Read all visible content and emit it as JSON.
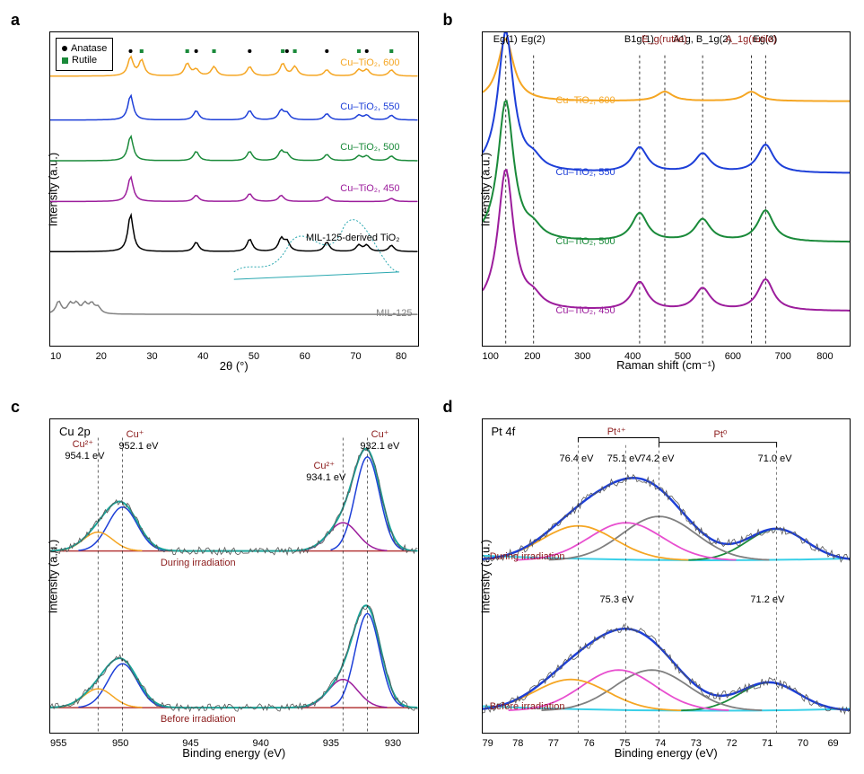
{
  "panel_a": {
    "label": "a",
    "y_label": "Intensity (a.u.)",
    "x_label": "2θ (°)",
    "x_ticks": [
      "10",
      "20",
      "30",
      "40",
      "50",
      "60",
      "70",
      "80"
    ],
    "x_range": [
      10,
      80
    ],
    "legend": {
      "anatase": {
        "text": "Anatase",
        "marker": "circle",
        "color": "#000000"
      },
      "rutile": {
        "text": "Rutile",
        "marker": "square",
        "color": "#1a8a3a"
      }
    },
    "traces": [
      {
        "name": "Cu-TiO2, 600",
        "label": "Cu–TiO₂, 600",
        "color": "#f5a623",
        "y_offset": 0.86,
        "xrd_peaks": [
          {
            "x": 25.3,
            "h": 0.06
          },
          {
            "x": 27.4,
            "h": 0.05
          },
          {
            "x": 36.1,
            "h": 0.04
          },
          {
            "x": 37.8,
            "h": 0.02
          },
          {
            "x": 41.2,
            "h": 0.03
          },
          {
            "x": 48.0,
            "h": 0.03
          },
          {
            "x": 54.3,
            "h": 0.04
          },
          {
            "x": 56.6,
            "h": 0.03
          },
          {
            "x": 62.7,
            "h": 0.02
          },
          {
            "x": 68.8,
            "h": 0.02
          },
          {
            "x": 70.3,
            "h": 0.02
          },
          {
            "x": 75.0,
            "h": 0.02
          }
        ],
        "anatase_marks": [
          25.3,
          37.8,
          48.0,
          55.1,
          62.7,
          70.3
        ],
        "rutile_marks": [
          27.4,
          36.1,
          41.2,
          54.3,
          56.6,
          68.8,
          75.0
        ]
      },
      {
        "name": "Cu-TiO2, 550",
        "label": "Cu–TiO₂, 550",
        "color": "#1d3fd8",
        "y_offset": 0.72,
        "xrd_peaks": [
          {
            "x": 25.3,
            "h": 0.08
          },
          {
            "x": 37.8,
            "h": 0.03
          },
          {
            "x": 48.0,
            "h": 0.03
          },
          {
            "x": 54.0,
            "h": 0.03
          },
          {
            "x": 55.1,
            "h": 0.02
          },
          {
            "x": 62.7,
            "h": 0.02
          },
          {
            "x": 68.8,
            "h": 0.015
          },
          {
            "x": 70.3,
            "h": 0.015
          },
          {
            "x": 75.0,
            "h": 0.015
          }
        ]
      },
      {
        "name": "Cu-TiO2, 500",
        "label": "Cu–TiO₂, 500",
        "color": "#1a8a3a",
        "y_offset": 0.59,
        "xrd_peaks": [
          {
            "x": 25.3,
            "h": 0.08
          },
          {
            "x": 37.8,
            "h": 0.03
          },
          {
            "x": 48.0,
            "h": 0.03
          },
          {
            "x": 54.0,
            "h": 0.03
          },
          {
            "x": 55.1,
            "h": 0.02
          },
          {
            "x": 62.7,
            "h": 0.02
          },
          {
            "x": 68.8,
            "h": 0.015
          },
          {
            "x": 70.3,
            "h": 0.015
          },
          {
            "x": 75.0,
            "h": 0.015
          }
        ]
      },
      {
        "name": "Cu-TiO2, 450",
        "label": "Cu–TiO₂, 450",
        "color": "#9c1d9c",
        "y_offset": 0.46,
        "xrd_peaks": [
          {
            "x": 25.3,
            "h": 0.08
          },
          {
            "x": 37.8,
            "h": 0.02
          },
          {
            "x": 48.0,
            "h": 0.025
          },
          {
            "x": 54.0,
            "h": 0.02
          },
          {
            "x": 62.7,
            "h": 0.015
          },
          {
            "x": 75.0,
            "h": 0.01
          }
        ]
      },
      {
        "name": "MIL-125-derived TiO2",
        "label": "MIL-125-derived TiO₂",
        "color": "#000000",
        "y_offset": 0.3,
        "xrd_peaks": [
          {
            "x": 25.3,
            "h": 0.12
          },
          {
            "x": 37.8,
            "h": 0.03
          },
          {
            "x": 48.0,
            "h": 0.04
          },
          {
            "x": 54.0,
            "h": 0.04
          },
          {
            "x": 55.1,
            "h": 0.03
          },
          {
            "x": 62.7,
            "h": 0.03
          },
          {
            "x": 68.8,
            "h": 0.02
          },
          {
            "x": 70.3,
            "h": 0.02
          },
          {
            "x": 75.0,
            "h": 0.02
          }
        ]
      },
      {
        "name": "MIL-125",
        "label": "MIL-125",
        "color": "#808080",
        "y_offset": 0.1,
        "xrd_peaks": [
          {
            "x": 11.6,
            "h": 0.04
          },
          {
            "x": 13.8,
            "h": 0.03
          },
          {
            "x": 15.0,
            "h": 0.03
          },
          {
            "x": 16.6,
            "h": 0.03
          },
          {
            "x": 17.9,
            "h": 0.03
          },
          {
            "x": 19.1,
            "h": 0.02
          }
        ]
      }
    ],
    "inset_curve_color": "#2aa8b0"
  },
  "panel_b": {
    "label": "b",
    "y_label": "Intensity (a.u.)",
    "x_label": "Raman shift (cm⁻¹)",
    "x_ticks": [
      "100",
      "200",
      "300",
      "400",
      "500",
      "600",
      "700",
      "800"
    ],
    "x_range": [
      100,
      800
    ],
    "modes_black": [
      {
        "label": "E_g(1)",
        "x": 144
      },
      {
        "label": "E_g(2)",
        "x": 197
      },
      {
        "label": "B_1g(1)",
        "x": 399
      },
      {
        "label": "A_1g, B_1g(2)",
        "x": 519
      },
      {
        "label": "E_g(3)",
        "x": 639
      }
    ],
    "modes_dark": [
      {
        "label": "E_g(rutile)",
        "x": 447,
        "color": "#8b1a1a"
      },
      {
        "label": "A_1g(rutile)",
        "x": 612,
        "color": "#8b1a1a"
      }
    ],
    "traces": [
      {
        "name": "Cu-TiO2, 600",
        "label": "Cu–TiO₂, 600",
        "color": "#f5a623",
        "y_offset": 0.78,
        "raman_peaks": [
          {
            "x": 144,
            "h": 0.2
          },
          {
            "x": 447,
            "h": 0.03
          },
          {
            "x": 612,
            "h": 0.03
          }
        ]
      },
      {
        "name": "Cu-TiO2, 550",
        "label": "Cu–TiO₂, 550",
        "color": "#1d3fd8",
        "y_offset": 0.55,
        "raman_peaks": [
          {
            "x": 144,
            "h": 0.45
          },
          {
            "x": 197,
            "h": 0.03
          },
          {
            "x": 399,
            "h": 0.08
          },
          {
            "x": 519,
            "h": 0.06
          },
          {
            "x": 639,
            "h": 0.09
          }
        ]
      },
      {
        "name": "Cu-TiO2, 500",
        "label": "Cu–TiO₂, 500",
        "color": "#1a8a3a",
        "y_offset": 0.33,
        "raman_peaks": [
          {
            "x": 144,
            "h": 0.45
          },
          {
            "x": 197,
            "h": 0.03
          },
          {
            "x": 399,
            "h": 0.09
          },
          {
            "x": 519,
            "h": 0.07
          },
          {
            "x": 639,
            "h": 0.1
          }
        ]
      },
      {
        "name": "Cu-TiO2, 450",
        "label": "Cu–TiO₂, 450",
        "color": "#9c1d9c",
        "y_offset": 0.11,
        "raman_peaks": [
          {
            "x": 144,
            "h": 0.45
          },
          {
            "x": 197,
            "h": 0.03
          },
          {
            "x": 399,
            "h": 0.09
          },
          {
            "x": 519,
            "h": 0.07
          },
          {
            "x": 639,
            "h": 0.1
          }
        ]
      }
    ]
  },
  "panel_c": {
    "label": "c",
    "title": "Cu 2p",
    "y_label": "Intensity (a.u.)",
    "x_label": "Binding energy (eV)",
    "x_ticks": [
      "955",
      "950",
      "945",
      "940",
      "935",
      "930"
    ],
    "x_range": [
      958,
      928
    ],
    "colors": {
      "envelope": "#1aa59a",
      "cu_plus": "#1d3fd8",
      "cu_2plus": "#f5a623",
      "baseline": "#b53a3a",
      "raw": "#555555",
      "extra_peak": "#9c1d9c"
    },
    "labels": {
      "cu_plus_hi": {
        "text": "Cu⁺",
        "val": "952.1 eV",
        "x": 952.1,
        "color": "#8b1a1a"
      },
      "cu_2plus_hi": {
        "text": "Cu²⁺",
        "val": "954.1 eV",
        "x": 954.1,
        "color": "#8b1a1a"
      },
      "cu_plus_lo": {
        "text": "Cu⁺",
        "val": "932.1 eV",
        "x": 932.1,
        "color": "#8b1a1a"
      },
      "cu_2plus_lo": {
        "text": "Cu²⁺",
        "val": "934.1 eV",
        "x": 934.1,
        "color": "#8b1a1a"
      }
    },
    "state_labels": {
      "during": "During irradiation",
      "before": "Before irradiation",
      "color": "#8b1a1a"
    }
  },
  "panel_d": {
    "label": "d",
    "title": "Pt 4f",
    "y_label": "Intensity (a.u.)",
    "x_label": "Binding energy (eV)",
    "x_ticks": [
      "79",
      "78",
      "77",
      "76",
      "75",
      "74",
      "73",
      "72",
      "71",
      "70",
      "69"
    ],
    "x_range": [
      79,
      69
    ],
    "colors": {
      "envelope": "#1d3fd8",
      "raw": "#555555",
      "pt0_1": "#1a8a3a",
      "pt0_2": "#808080",
      "pt4_1": "#e84fcf",
      "pt4_2": "#f5a623",
      "baseline": "#3ad0e8"
    },
    "species_labels": {
      "pt4": {
        "text": "Pt⁴⁺",
        "color": "#8b1a1a"
      },
      "pt0": {
        "text": "Pt⁰",
        "color": "#8b1a1a"
      }
    },
    "peak_labels_during": [
      {
        "val": "76.4 eV",
        "x": 76.4
      },
      {
        "val": "75.1 eV",
        "x": 75.1
      },
      {
        "val": "74.2 eV",
        "x": 74.2
      },
      {
        "val": "71.0 eV",
        "x": 71.0
      }
    ],
    "peak_labels_before": [
      {
        "val": "75.3 eV",
        "x": 75.3
      },
      {
        "val": "71.2 eV",
        "x": 71.2
      }
    ],
    "state_labels": {
      "during": "During irradiation",
      "before": "Before irradiation",
      "color": "#8b1a1a"
    }
  }
}
